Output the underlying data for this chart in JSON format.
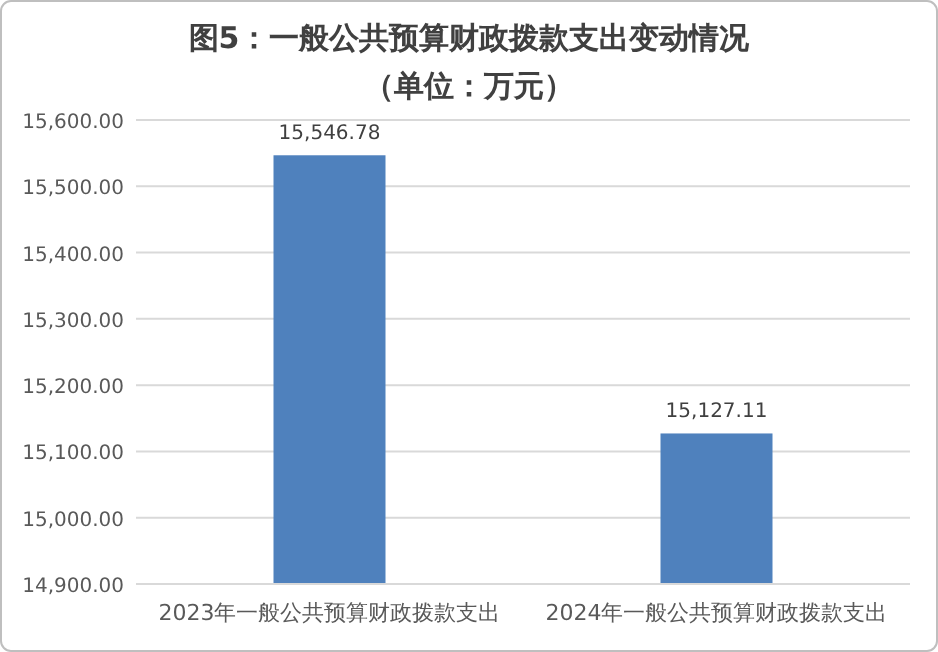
{
  "chart_data": {
    "type": "bar",
    "title": "图5：一般公共预算财政拨款支出变动情况",
    "subtitle": "（单位：万元）",
    "categories": [
      "2023年一般公共预算财政拨款支出",
      "2024年一般公共预算财政拨款支出"
    ],
    "values": [
      15546.78,
      15127.11
    ],
    "value_labels": [
      "15,546.78",
      "15,127.11"
    ],
    "color": "#4f81bd",
    "ylim": [
      14900,
      15600
    ],
    "yticks": [
      {
        "value": 14900,
        "label": "14,900.00"
      },
      {
        "value": 15000,
        "label": "15,000.00"
      },
      {
        "value": 15100,
        "label": "15,100.00"
      },
      {
        "value": 15200,
        "label": "15,200.00"
      },
      {
        "value": 15300,
        "label": "15,300.00"
      },
      {
        "value": 15400,
        "label": "15,400.00"
      },
      {
        "value": 15500,
        "label": "15,500.00"
      },
      {
        "value": 15600,
        "label": "15,600.00"
      }
    ],
    "grid": "y"
  }
}
